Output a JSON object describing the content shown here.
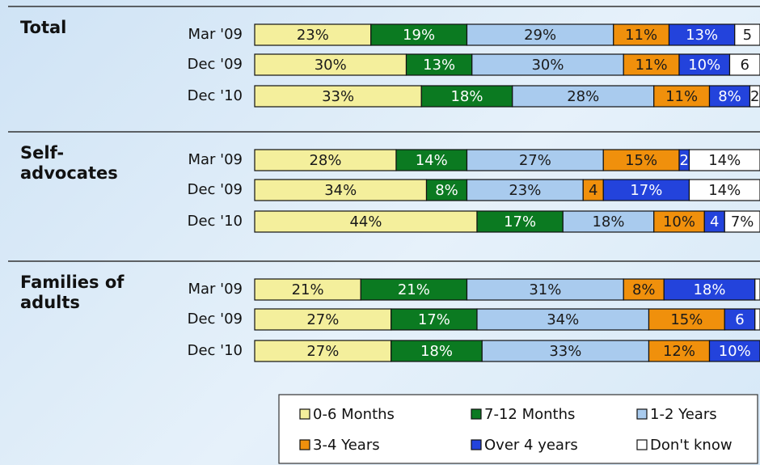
{
  "chart_data": {
    "type": "stacked-bar",
    "groups": [
      "Total",
      "Self-advocates",
      "Families of adults"
    ],
    "categories": [
      "Mar '09",
      "Dec '09",
      "Dec '10",
      "Mar '09",
      "Dec '09",
      "Dec '10",
      "Mar '09",
      "Dec '09",
      "Dec '10"
    ],
    "series": [
      {
        "name": "0-6 Months",
        "color": "#f4ef9c",
        "label_color": "#1a1a1a",
        "values": [
          23,
          30,
          33,
          28,
          34,
          44,
          21,
          27,
          27
        ],
        "value_labels": [
          "23%",
          "30%",
          "33%",
          "28%",
          "34%",
          "44%",
          "21%",
          "27%",
          "27%"
        ]
      },
      {
        "name": "7-12 Months",
        "color": "#0b7a21",
        "label_color": "#ffffff",
        "values": [
          19,
          13,
          18,
          14,
          8,
          17,
          21,
          17,
          18
        ],
        "value_labels": [
          "19%",
          "13%",
          "18%",
          "14%",
          "8%",
          "17%",
          "21%",
          "17%",
          "18%"
        ]
      },
      {
        "name": "1-2 Years",
        "color": "#a9cbee",
        "label_color": "#1a1a1a",
        "values": [
          29,
          30,
          28,
          27,
          23,
          18,
          31,
          34,
          33
        ],
        "value_labels": [
          "29%",
          "30%",
          "28%",
          "27%",
          "23%",
          "18%",
          "31%",
          "34%",
          "33%"
        ]
      },
      {
        "name": "3-4 Years",
        "color": "#f0900c",
        "label_color": "#1a1a1a",
        "values": [
          11,
          11,
          11,
          15,
          4,
          10,
          8,
          15,
          12
        ],
        "value_labels": [
          "11%",
          "11%",
          "11%",
          "15%",
          "4",
          "10%",
          "8%",
          "15%",
          "12%"
        ]
      },
      {
        "name": "Over 4 years",
        "color": "#2343dc",
        "label_color": "#ffffff",
        "values": [
          13,
          10,
          8,
          2,
          17,
          4,
          18,
          6,
          10
        ],
        "value_labels": [
          "13%",
          "10%",
          "8%",
          "2",
          "17%",
          "4",
          "18%",
          "6",
          "10%"
        ]
      },
      {
        "name": "Don't know",
        "color": "#ffffff",
        "label_color": "#1a1a1a",
        "values": [
          5,
          6,
          2,
          14,
          14,
          7,
          1,
          1,
          0
        ],
        "value_labels": [
          "5",
          "6",
          "2",
          "14%",
          "14%",
          "7%",
          null,
          null,
          null
        ]
      }
    ]
  }
}
